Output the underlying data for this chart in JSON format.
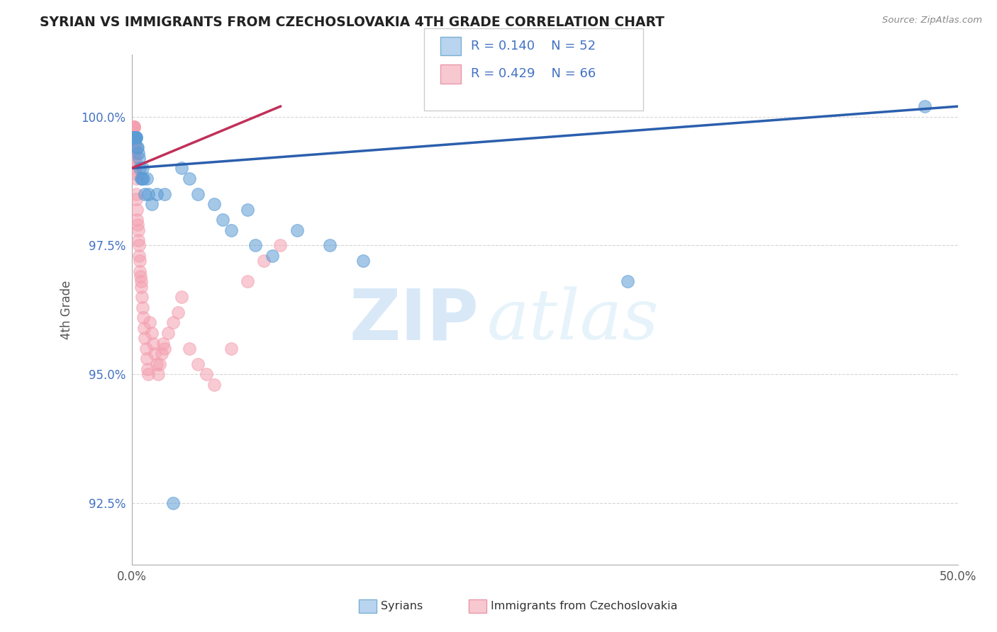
{
  "title": "SYRIAN VS IMMIGRANTS FROM CZECHOSLOVAKIA 4TH GRADE CORRELATION CHART",
  "source": "Source: ZipAtlas.com",
  "xlabel_syrians": "Syrians",
  "xlabel_czech": "Immigrants from Czechoslovakia",
  "ylabel": "4th Grade",
  "xlim": [
    0.0,
    50.0
  ],
  "ylim": [
    91.3,
    101.2
  ],
  "x_ticks": [
    0.0,
    50.0
  ],
  "x_tick_labels": [
    "0.0%",
    "50.0%"
  ],
  "y_ticks": [
    92.5,
    95.0,
    97.5,
    100.0
  ],
  "y_tick_labels": [
    "92.5%",
    "95.0%",
    "97.5%",
    "100.0%"
  ],
  "color_syrians": "#5b9bd5",
  "color_czech": "#f4a0b0",
  "R_syrians": 0.14,
  "N_syrians": 52,
  "R_czech": 0.429,
  "N_czech": 66,
  "legend_box_color_syrians": "#b8d4ee",
  "legend_box_color_czech": "#f8c8d0",
  "trend_color_syrians": "#2b5fad",
  "trend_color_czech": "#c0305a",
  "background": "#ffffff",
  "grid_color": "#cccccc",
  "watermark_zip": "ZIP",
  "watermark_atlas": "atlas",
  "syrians_x": [
    0.05,
    0.06,
    0.07,
    0.08,
    0.09,
    0.1,
    0.11,
    0.12,
    0.13,
    0.14,
    0.15,
    0.16,
    0.17,
    0.18,
    0.19,
    0.2,
    0.21,
    0.22,
    0.23,
    0.24,
    0.25,
    0.28,
    0.3,
    0.35,
    0.4,
    0.45,
    0.5,
    0.55,
    0.6,
    0.65,
    0.7,
    0.8,
    0.9,
    1.0,
    1.2,
    1.5,
    2.0,
    2.5,
    3.0,
    3.5,
    4.0,
    5.0,
    5.5,
    6.0,
    7.0,
    7.5,
    8.5,
    10.0,
    12.0,
    14.0,
    30.0,
    48.0
  ],
  "syrians_y": [
    99.6,
    99.6,
    99.6,
    99.6,
    99.6,
    99.6,
    99.6,
    99.6,
    99.6,
    99.6,
    99.6,
    99.6,
    99.6,
    99.6,
    99.6,
    99.6,
    99.6,
    99.6,
    99.6,
    99.6,
    99.6,
    99.6,
    99.4,
    99.4,
    99.3,
    99.2,
    99.0,
    98.8,
    98.8,
    99.0,
    98.8,
    98.5,
    98.8,
    98.5,
    98.3,
    98.5,
    98.5,
    92.5,
    99.0,
    98.8,
    98.5,
    98.3,
    98.0,
    97.8,
    98.2,
    97.5,
    97.3,
    97.8,
    97.5,
    97.2,
    96.8,
    100.2
  ],
  "czech_x": [
    0.05,
    0.06,
    0.07,
    0.08,
    0.09,
    0.1,
    0.11,
    0.12,
    0.13,
    0.14,
    0.15,
    0.16,
    0.17,
    0.18,
    0.19,
    0.2,
    0.21,
    0.22,
    0.23,
    0.24,
    0.25,
    0.27,
    0.28,
    0.3,
    0.32,
    0.35,
    0.38,
    0.4,
    0.42,
    0.45,
    0.48,
    0.5,
    0.52,
    0.55,
    0.58,
    0.6,
    0.65,
    0.7,
    0.75,
    0.8,
    0.85,
    0.9,
    0.95,
    1.0,
    1.1,
    1.2,
    1.3,
    1.4,
    1.5,
    1.6,
    1.7,
    1.8,
    1.9,
    2.0,
    2.2,
    2.5,
    2.8,
    3.0,
    3.5,
    4.0,
    4.5,
    5.0,
    6.0,
    7.0,
    8.0,
    9.0
  ],
  "czech_y": [
    99.8,
    99.8,
    99.8,
    99.8,
    99.8,
    99.8,
    99.8,
    99.8,
    99.8,
    99.8,
    99.6,
    99.6,
    99.5,
    99.5,
    99.4,
    99.3,
    99.2,
    99.1,
    99.0,
    98.9,
    98.8,
    98.5,
    98.4,
    98.2,
    98.0,
    97.9,
    97.8,
    97.6,
    97.5,
    97.3,
    97.2,
    97.0,
    96.9,
    96.8,
    96.7,
    96.5,
    96.3,
    96.1,
    95.9,
    95.7,
    95.5,
    95.3,
    95.1,
    95.0,
    96.0,
    95.8,
    95.6,
    95.4,
    95.2,
    95.0,
    95.2,
    95.4,
    95.6,
    95.5,
    95.8,
    96.0,
    96.2,
    96.5,
    95.5,
    95.2,
    95.0,
    94.8,
    95.5,
    96.8,
    97.2,
    97.5
  ],
  "trend_syrians_x0": 0.0,
  "trend_syrians_y0": 99.0,
  "trend_syrians_x1": 50.0,
  "trend_syrians_y1": 100.2,
  "trend_czech_x0": 0.0,
  "trend_czech_y0": 99.0,
  "trend_czech_x1": 9.0,
  "trend_czech_y1": 100.2
}
